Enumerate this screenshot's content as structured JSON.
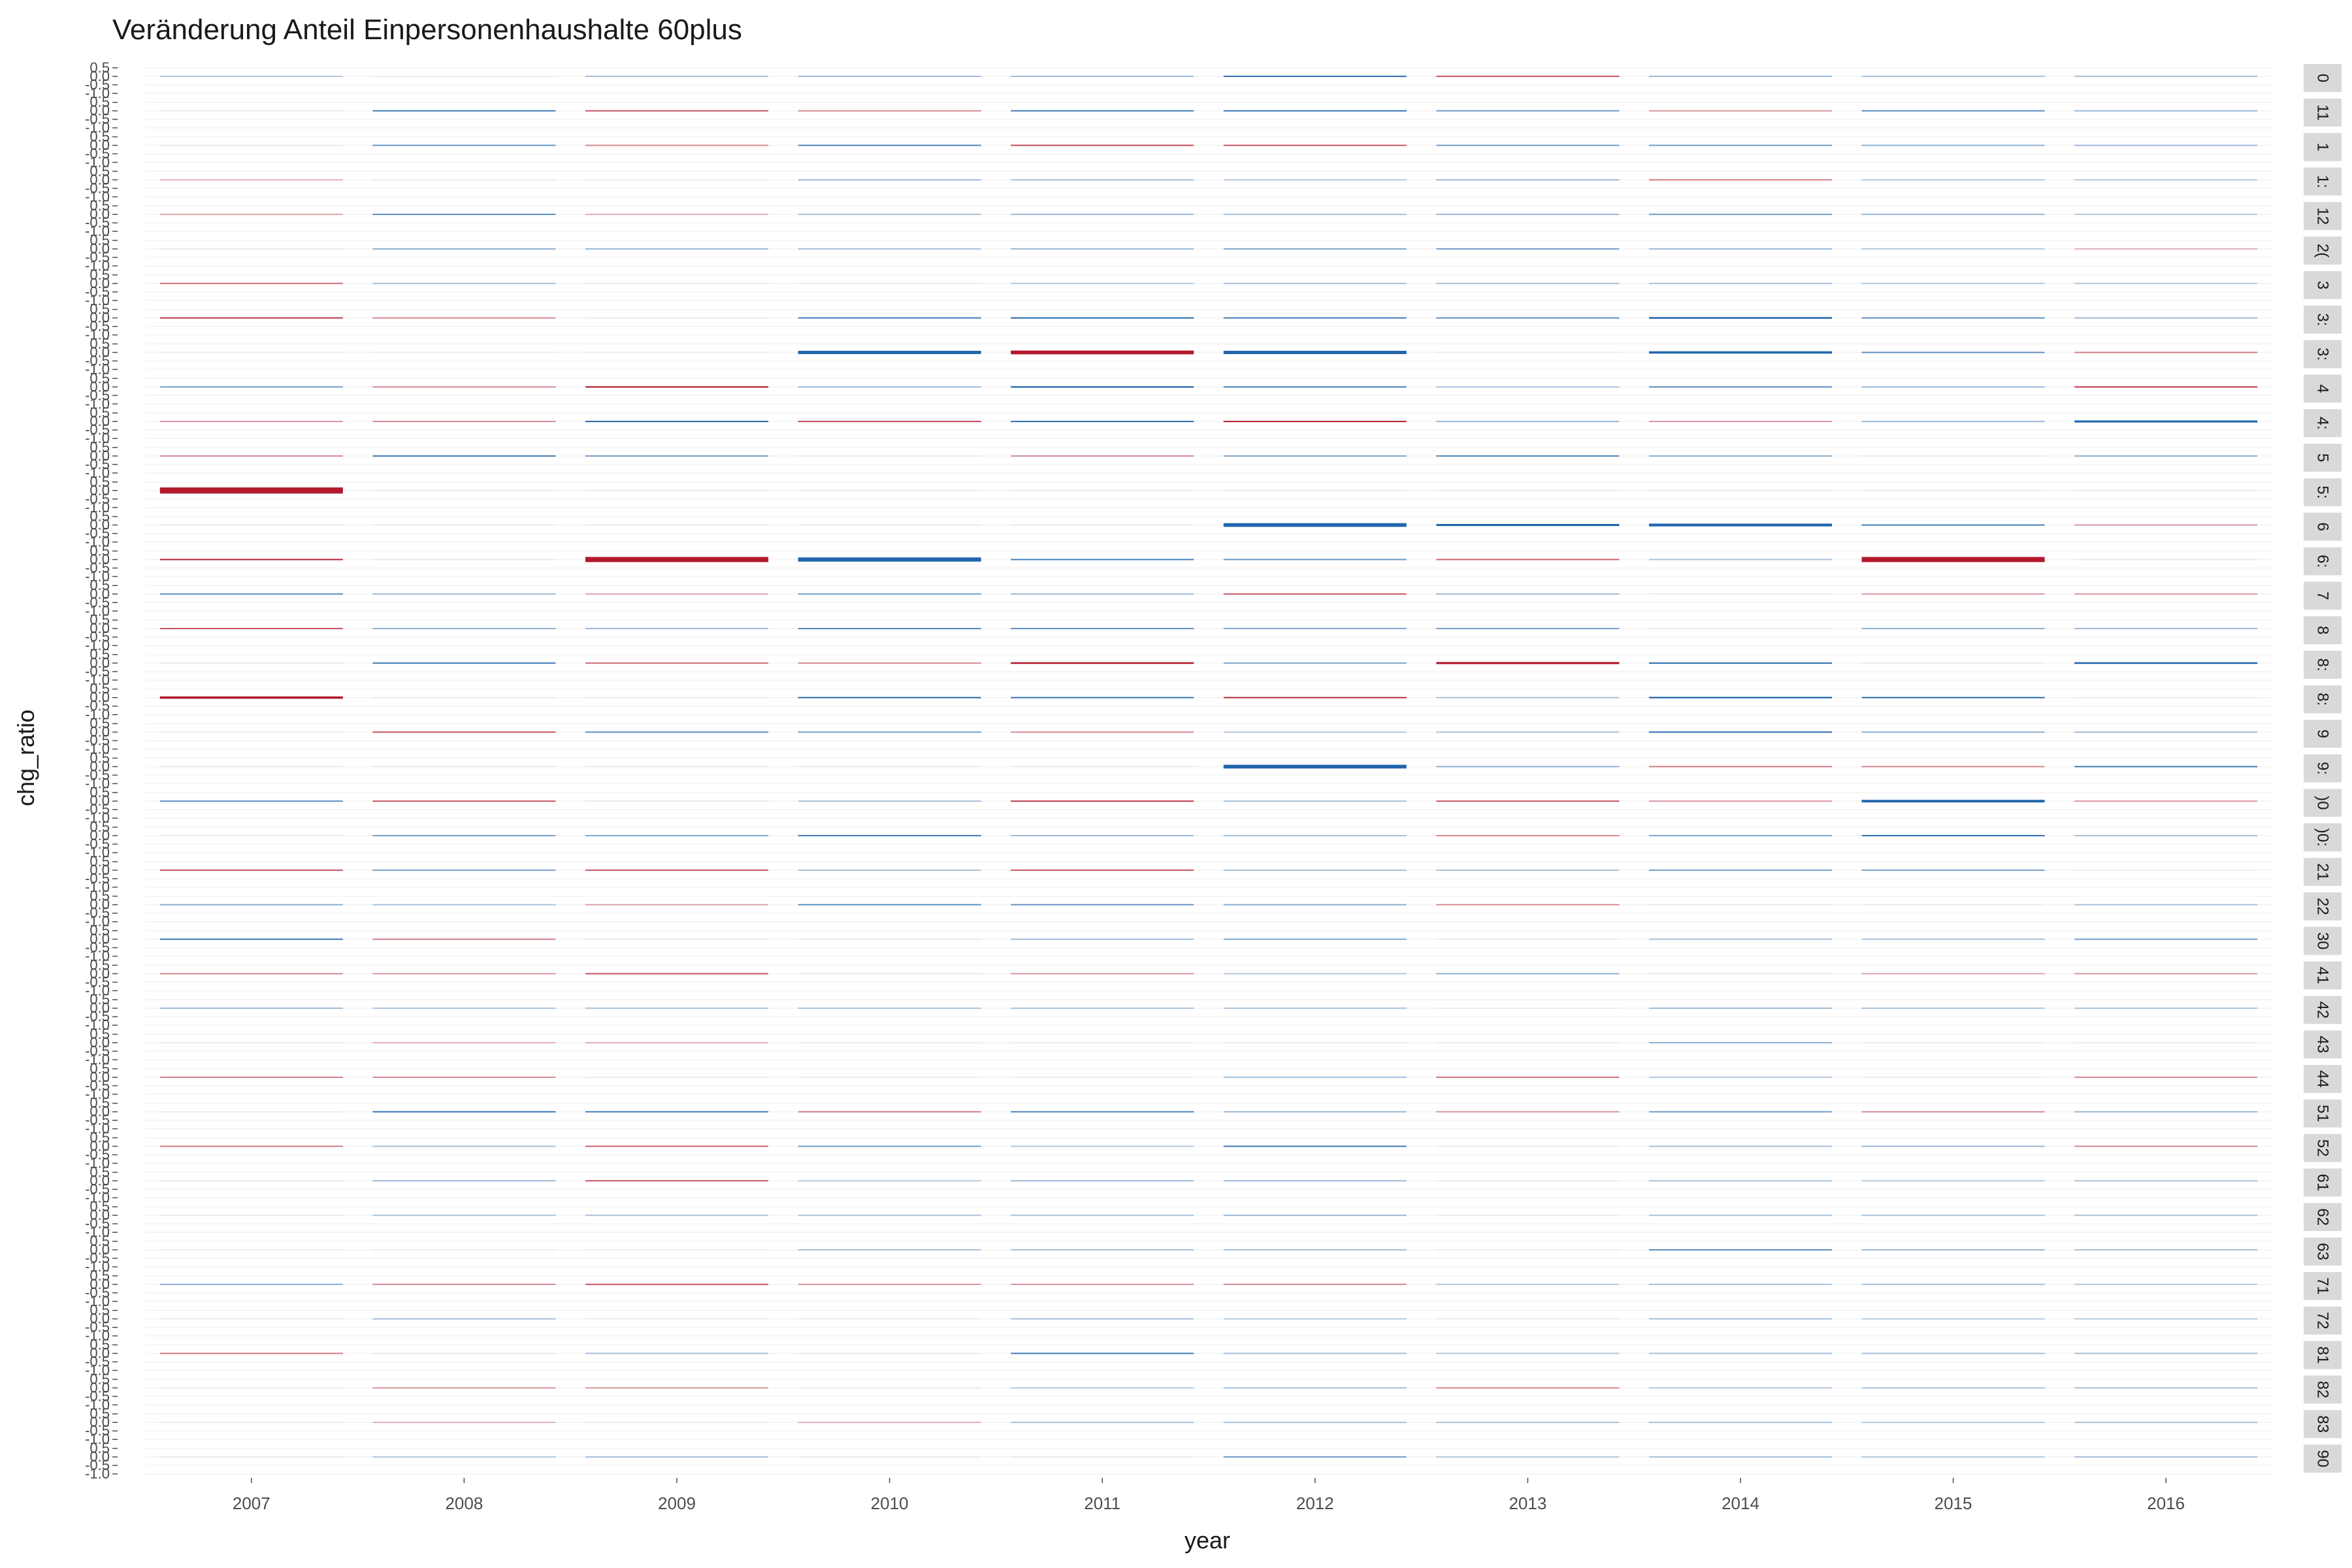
{
  "chart_data": {
    "type": "bar",
    "title": "Veränderung Anteil Einpersonenhaushalte 60plus",
    "xlabel": "year",
    "ylabel": "chg_ratio",
    "x": [
      "2007",
      "2008",
      "2009",
      "2010",
      "2011",
      "2012",
      "2013",
      "2014",
      "2015",
      "2016"
    ],
    "facet_y_ticks": [
      "0.5",
      "0.0",
      "-0.5",
      "-1.0"
    ],
    "ylim": [
      -1.0,
      0.8
    ],
    "grid": true,
    "legend": "none",
    "colors": {
      "negative": "#b2182b",
      "positive": "#2166ac",
      "strip": "#d9d9d9",
      "grid": "#f2f2f2"
    },
    "facets": [
      {
        "label": "0",
        "values": [
          0.01,
          0,
          0.02,
          0.03,
          0.03,
          0.12,
          -0.08,
          0.03,
          0.02,
          0.02
        ]
      },
      {
        "label": "11",
        "values": [
          0,
          0.1,
          -0.08,
          -0.04,
          0.1,
          0.11,
          0.06,
          -0.03,
          0.08,
          0.03
        ]
      },
      {
        "label": "1",
        "values": [
          0,
          0.07,
          -0.04,
          0.09,
          -0.09,
          -0.08,
          0.06,
          0.06,
          0.04,
          0.03
        ]
      },
      {
        "label": "1:",
        "values": [
          -0.01,
          0,
          0,
          0.03,
          0.02,
          0.01,
          0.03,
          -0.05,
          0.01,
          0.01
        ]
      },
      {
        "label": "12",
        "values": [
          -0.02,
          0.08,
          -0.01,
          0.02,
          0.03,
          0.02,
          0.03,
          0.06,
          0.03,
          0.01
        ]
      },
      {
        "label": "2(",
        "values": [
          0,
          0.04,
          0.03,
          0.02,
          0.03,
          0.05,
          0.06,
          0.03,
          0.01,
          -0.01
        ]
      },
      {
        "label": "3",
        "values": [
          -0.06,
          0.02,
          0,
          0,
          0.01,
          0.02,
          0.02,
          0.02,
          0.01,
          0.01
        ]
      },
      {
        "label": "3:",
        "values": [
          -0.1,
          -0.04,
          0,
          0.1,
          0.14,
          0.1,
          0.08,
          0.18,
          0.08,
          0.03
        ]
      },
      {
        "label": "3:",
        "values": [
          0,
          0,
          0,
          0.35,
          -0.4,
          0.35,
          0,
          0.25,
          0.08,
          -0.05
        ]
      },
      {
        "label": "4",
        "values": [
          0.06,
          -0.04,
          -0.15,
          0.03,
          0.16,
          0.1,
          0.02,
          0.08,
          0.03,
          -0.1
        ]
      },
      {
        "label": "4:",
        "values": [
          -0.03,
          -0.04,
          0.14,
          -0.09,
          0.12,
          -0.14,
          0.03,
          -0.03,
          0.03,
          0.22
        ]
      },
      {
        "label": "5",
        "values": [
          -0.04,
          0.1,
          0.06,
          0,
          -0.04,
          0.05,
          0.09,
          0.04,
          0,
          0.04
        ]
      },
      {
        "label": "5:",
        "values": [
          -0.65,
          0,
          0,
          0,
          0,
          0,
          0,
          0,
          0,
          0
        ]
      },
      {
        "label": "6",
        "values": [
          0,
          0,
          0,
          0,
          0,
          0.4,
          0.22,
          0.3,
          0.1,
          -0.03
        ]
      },
      {
        "label": "6:",
        "values": [
          -0.12,
          0,
          -0.55,
          0.45,
          0.1,
          0.07,
          -0.07,
          0.02,
          -0.55,
          0
        ]
      },
      {
        "label": "7",
        "values": [
          0.08,
          0.03,
          -0.02,
          0.06,
          0.03,
          -0.08,
          0.03,
          0,
          -0.03,
          -0.03
        ]
      },
      {
        "label": "8",
        "values": [
          -0.08,
          0.04,
          0.03,
          0.09,
          0.08,
          0.05,
          0.06,
          0,
          0.04,
          0.03
        ]
      },
      {
        "label": "8:",
        "values": [
          0,
          0.1,
          -0.06,
          -0.04,
          -0.18,
          0.05,
          -0.22,
          0.12,
          0,
          0.18
        ]
      },
      {
        "label": "8:",
        "values": [
          -0.25,
          0,
          0,
          0.12,
          0.11,
          -0.11,
          0.02,
          0.16,
          0.12,
          0
        ]
      },
      {
        "label": "9",
        "values": [
          0,
          -0.08,
          0.08,
          0.06,
          -0.04,
          0.01,
          0.02,
          0.12,
          0.04,
          0.03
        ]
      },
      {
        "label": "9:",
        "values": [
          0,
          0,
          0,
          0,
          0,
          0.4,
          0.04,
          -0.05,
          -0.04,
          0.1
        ]
      },
      {
        "label": ")0",
        "values": [
          0.08,
          -0.08,
          0,
          0.02,
          -0.1,
          0.02,
          -0.08,
          -0.03,
          0.28,
          -0.03
        ]
      },
      {
        "label": ")0:",
        "values": [
          0,
          0.06,
          0.05,
          0.1,
          0.03,
          0.02,
          -0.04,
          0.05,
          0.12,
          0.02
        ]
      },
      {
        "label": "21",
        "values": [
          -0.08,
          0.06,
          -0.08,
          0.02,
          -0.08,
          0.02,
          0.02,
          0.06,
          0.06,
          0
        ]
      },
      {
        "label": "22",
        "values": [
          0.04,
          0.02,
          -0.02,
          0.08,
          0.07,
          0.04,
          -0.04,
          0,
          0,
          0.02
        ]
      },
      {
        "label": "30",
        "values": [
          0.11,
          -0.05,
          0,
          0,
          0.03,
          0.05,
          0,
          0.02,
          0.02,
          0.06
        ]
      },
      {
        "label": "41",
        "values": [
          -0.04,
          -0.03,
          -0.08,
          0,
          -0.03,
          0.01,
          0.04,
          0,
          -0.02,
          -0.03
        ]
      },
      {
        "label": "42",
        "values": [
          0.03,
          0.02,
          0.02,
          0.02,
          0.02,
          0.02,
          0,
          0.03,
          0.02,
          0.02
        ]
      },
      {
        "label": "43",
        "values": [
          0,
          -0.01,
          -0.01,
          0,
          0,
          0,
          0,
          0.04,
          0,
          0
        ]
      },
      {
        "label": "44",
        "values": [
          -0.05,
          -0.04,
          0,
          0,
          0,
          0.02,
          -0.06,
          0.01,
          0,
          -0.04
        ]
      },
      {
        "label": "51",
        "values": [
          0,
          0.11,
          0.1,
          -0.05,
          0.09,
          0.03,
          -0.03,
          0.06,
          -0.04,
          0.03
        ]
      },
      {
        "label": "52",
        "values": [
          -0.05,
          0.02,
          -0.07,
          0.06,
          0.01,
          0.1,
          0,
          0.02,
          0.03,
          -0.04
        ]
      },
      {
        "label": "61",
        "values": [
          0,
          0.03,
          -0.08,
          0.01,
          0.03,
          0.03,
          0,
          0.02,
          0.01,
          0.02
        ]
      },
      {
        "label": "62",
        "values": [
          0,
          0.02,
          0.02,
          0.02,
          0.02,
          0.03,
          0,
          0.02,
          0.02,
          0.02
        ]
      },
      {
        "label": "63",
        "values": [
          0,
          0,
          0,
          0.02,
          0.02,
          0.02,
          0,
          0.08,
          0.03,
          0.02
        ]
      },
      {
        "label": "71",
        "values": [
          0.04,
          -0.04,
          -0.08,
          -0.03,
          -0.03,
          -0.04,
          0.01,
          0.02,
          0.02,
          0.01
        ]
      },
      {
        "label": "72",
        "values": [
          0,
          0.02,
          0,
          0,
          0.02,
          0.01,
          0,
          0.02,
          0.01,
          0.01
        ]
      },
      {
        "label": "81",
        "values": [
          -0.05,
          0,
          0.02,
          0,
          0.1,
          0.02,
          0.01,
          0.02,
          0.02,
          0.02
        ]
      },
      {
        "label": "82",
        "values": [
          0,
          -0.03,
          -0.03,
          0,
          0.01,
          0.02,
          -0.04,
          0.01,
          0.02,
          0.02
        ]
      },
      {
        "label": "83",
        "values": [
          0,
          -0.01,
          0,
          -0.01,
          0.02,
          0.02,
          0.02,
          0.02,
          0.01,
          0.02
        ]
      },
      {
        "label": "90",
        "values": [
          0,
          0.01,
          0.02,
          0,
          0,
          0.06,
          0.01,
          0.02,
          0.01,
          0.02
        ]
      }
    ]
  }
}
